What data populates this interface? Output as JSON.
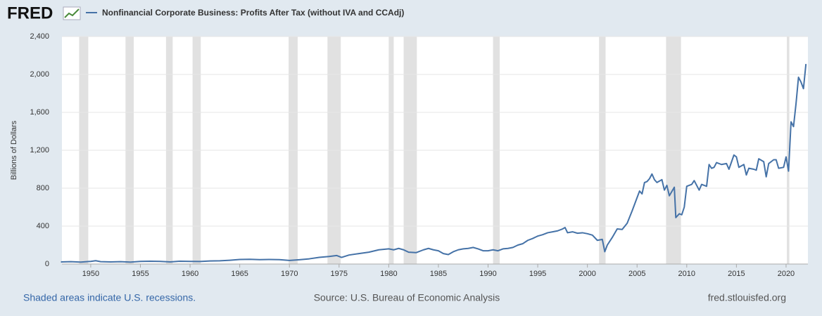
{
  "chart_data": {
    "type": "line",
    "brand": "FRED",
    "title": "Nonfinancial Corporate Business: Profits After Tax (without IVA and CCAdj)",
    "y_label": "Billions of Dollars",
    "footer_left": "Shaded areas indicate U.S. recessions.",
    "footer_center": "Source: U.S. Bureau of Economic Analysis",
    "footer_right": "fred.stlouisfed.org",
    "xlim": [
      1947.1,
      2022.2
    ],
    "ylim": [
      0,
      2400
    ],
    "xticks": [
      1950,
      1955,
      1960,
      1965,
      1970,
      1975,
      1980,
      1985,
      1990,
      1995,
      2000,
      2005,
      2010,
      2015,
      2020
    ],
    "yticks": [
      0,
      400,
      800,
      {
        "value": 1200,
        "label": "1,200"
      },
      {
        "value": 1600,
        "label": "1,600"
      },
      {
        "value": 2000,
        "label": "2,000"
      },
      {
        "value": 2400,
        "label": "2,400"
      }
    ],
    "grid": true,
    "recessions": [
      [
        1948.83,
        1949.75
      ],
      [
        1953.5,
        1954.33
      ],
      [
        1957.58,
        1958.25
      ],
      [
        1960.25,
        1961.08
      ],
      [
        1969.92,
        1970.83
      ],
      [
        1973.83,
        1975.17
      ],
      [
        1980.0,
        1980.5
      ],
      [
        1981.5,
        1982.83
      ],
      [
        1990.5,
        1991.17
      ],
      [
        2001.17,
        2001.83
      ],
      [
        2007.92,
        2009.42
      ],
      [
        2020.08,
        2020.33
      ]
    ],
    "recession_color": "#e1e1e1",
    "series": [
      {
        "name": "Nonfinancial Corporate Business: Profits After Tax (without IVA and CCAdj)",
        "color": "#4572a7",
        "x": [
          1947,
          1948,
          1949,
          1950,
          1950.5,
          1951,
          1952,
          1953,
          1954,
          1955,
          1956,
          1957,
          1958,
          1959,
          1960,
          1961,
          1962,
          1963,
          1964,
          1965,
          1966,
          1967,
          1968,
          1969,
          1970,
          1971,
          1972,
          1973,
          1974,
          1974.75,
          1975.25,
          1976,
          1977,
          1978,
          1979,
          1980,
          1980.5,
          1981,
          1981.5,
          1982,
          1982.75,
          1983.5,
          1984,
          1984.5,
          1985,
          1985.5,
          1986,
          1986.5,
          1987,
          1987.5,
          1988,
          1988.5,
          1989,
          1989.5,
          1990,
          1990.5,
          1991,
          1991.5,
          1992,
          1992.5,
          1993,
          1993.5,
          1994,
          1994.5,
          1995,
          1995.5,
          1996,
          1996.5,
          1997,
          1997.5,
          1997.75,
          1998,
          1998.5,
          1999,
          1999.5,
          2000,
          2000.5,
          2001,
          2001.5,
          2001.75,
          2002,
          2002.5,
          2003,
          2003.5,
          2004,
          2004.5,
          2005,
          2005.25,
          2005.5,
          2005.75,
          2006,
          2006.25,
          2006.5,
          2006.75,
          2007,
          2007.5,
          2007.75,
          2008,
          2008.25,
          2008.75,
          2008.9,
          2009.25,
          2009.5,
          2009.75,
          2010,
          2010.5,
          2010.75,
          2011.25,
          2011.5,
          2012,
          2012.25,
          2012.5,
          2012.75,
          2013,
          2013.5,
          2014,
          2014.25,
          2014.75,
          2015,
          2015.25,
          2015.75,
          2016,
          2016.25,
          2016.75,
          2017,
          2017.25,
          2017.75,
          2018,
          2018.25,
          2018.75,
          2019,
          2019.25,
          2019.75,
          2020,
          2020.25,
          2020.5,
          2020.75,
          2021,
          2021.25,
          2021.5,
          2021.75,
          2022
        ],
        "values": [
          22,
          25,
          20,
          28,
          35,
          25,
          22,
          25,
          20,
          28,
          30,
          28,
          22,
          30,
          28,
          27,
          32,
          34,
          40,
          48,
          50,
          46,
          48,
          46,
          38,
          45,
          55,
          70,
          80,
          90,
          70,
          95,
          110,
          125,
          150,
          160,
          150,
          165,
          150,
          125,
          120,
          150,
          165,
          150,
          140,
          110,
          100,
          130,
          150,
          160,
          165,
          175,
          160,
          140,
          140,
          150,
          140,
          160,
          165,
          175,
          200,
          215,
          250,
          270,
          295,
          310,
          330,
          340,
          350,
          370,
          385,
          330,
          340,
          325,
          330,
          320,
          305,
          250,
          260,
          130,
          200,
          280,
          370,
          365,
          430,
          560,
          700,
          770,
          740,
          860,
          870,
          900,
          950,
          890,
          860,
          890,
          780,
          830,
          720,
          810,
          490,
          530,
          520,
          600,
          820,
          840,
          880,
          780,
          840,
          820,
          1050,
          1010,
          1020,
          1070,
          1050,
          1060,
          1000,
          1150,
          1130,
          1020,
          1050,
          940,
          1010,
          1000,
          990,
          1110,
          1080,
          920,
          1060,
          1100,
          1100,
          1010,
          1020,
          1130,
          980,
          1500,
          1450,
          1690,
          1970,
          1920,
          1850,
          2110
        ]
      }
    ]
  }
}
